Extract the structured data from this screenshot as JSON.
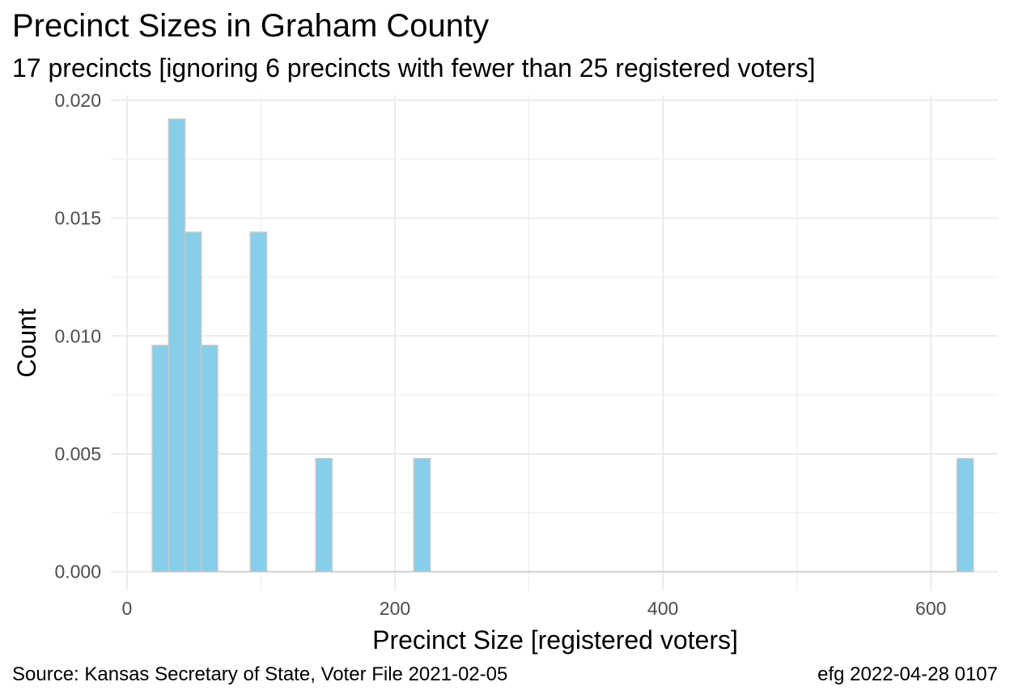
{
  "title": "Precinct Sizes in Graham County",
  "subtitle": "17 precincts [ignoring 6 precincts with fewer than 25 registered voters]",
  "caption_left": "Source:  Kansas Secretary of State, Voter File  2021-02-05",
  "caption_right": "efg 2022-04-28 0107",
  "colors": {
    "bar_fill": "#87CEEB",
    "bar_stroke": "#C8C8C8",
    "grid": "#EBEBEB",
    "text": "#4D4D4D"
  },
  "chart_data": {
    "type": "bar",
    "xlabel": "Precinct Size [registered voters]",
    "ylabel": "Count",
    "xlim": [
      -12,
      650
    ],
    "ylim": [
      -0.0008,
      0.0202
    ],
    "x_ticks": [
      0,
      200,
      400,
      600
    ],
    "x_tick_labels": [
      "0",
      "200",
      "400",
      "600"
    ],
    "y_ticks": [
      0.0,
      0.005,
      0.01,
      0.015,
      0.02
    ],
    "y_tick_labels": [
      "0.000",
      "0.005",
      "0.010",
      "0.015",
      "0.020"
    ],
    "grid": true,
    "bin_width": 12.2,
    "bars": [
      {
        "x": 25,
        "y": 0.0096
      },
      {
        "x": 37.2,
        "y": 0.0192
      },
      {
        "x": 49.4,
        "y": 0.0144
      },
      {
        "x": 61.6,
        "y": 0.0096
      },
      {
        "x": 98.2,
        "y": 0.0144
      },
      {
        "x": 147,
        "y": 0.0048
      },
      {
        "x": 220.2,
        "y": 0.0048
      },
      {
        "x": 625.6,
        "y": 0.0048
      }
    ]
  }
}
